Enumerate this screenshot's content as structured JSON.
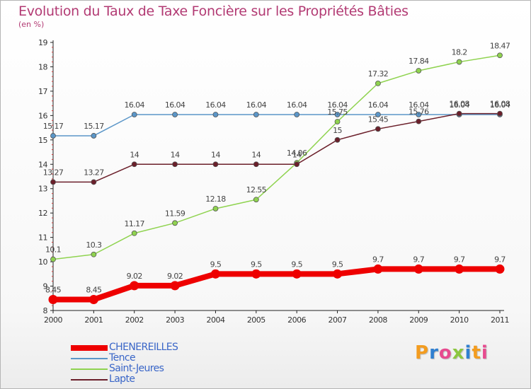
{
  "header": {
    "title": "Evolution du Taux de Taxe Foncière sur les Propriétés Bâties",
    "subtitle": "(en %)"
  },
  "colors": {
    "CHENEREILLES": "#ee0000",
    "Tence": "#5b96c8",
    "Saint-Jeures": "#8fd34f",
    "Lapte": "#6b1f2a",
    "title": "#b23a73",
    "legend_text": "#3a66c8"
  },
  "chart_data": {
    "type": "line",
    "title": "Evolution du Taux de Taxe Foncière sur les Propriétés Bâties",
    "ylabel": "(en %)",
    "x": [
      "2000",
      "2001",
      "2002",
      "2003",
      "2004",
      "2005",
      "2006",
      "2007",
      "2008",
      "2009",
      "2010",
      "2011"
    ],
    "ylim": [
      8,
      19
    ],
    "yticks": [
      8,
      9,
      10,
      11,
      12,
      13,
      14,
      15,
      16,
      17,
      18,
      19
    ],
    "grid": false,
    "legend_position": "bottom-left",
    "series": [
      {
        "name": "CHENEREILLES",
        "values": [
          8.45,
          8.45,
          9.02,
          9.02,
          9.5,
          9.5,
          9.5,
          9.5,
          9.7,
          9.7,
          9.7,
          9.7
        ],
        "labels": [
          "8.45",
          "8.45",
          "9.02",
          "9.02",
          "9.5",
          "9.5",
          "9.5",
          "9.5",
          "9.7",
          "9.7",
          "9.7",
          "9.7"
        ]
      },
      {
        "name": "Tence",
        "values": [
          15.17,
          15.17,
          16.04,
          16.04,
          16.04,
          16.04,
          16.04,
          16.04,
          16.04,
          16.04,
          16.04,
          16.04
        ],
        "labels": [
          "15.17",
          "15.17",
          "16.04",
          "16.04",
          "16.04",
          "16.04",
          "16.04",
          "16.04",
          "16.04",
          "16.04",
          "16.04",
          "16.04"
        ]
      },
      {
        "name": "Saint-Jeures",
        "values": [
          10.1,
          10.3,
          11.17,
          11.59,
          12.18,
          12.55,
          14.06,
          15.75,
          17.32,
          17.84,
          18.2,
          18.47
        ],
        "labels": [
          "10.1",
          "10.3",
          "11.17",
          "11.59",
          "12.18",
          "12.55",
          "14.06",
          "15.75",
          "17.32",
          "17.84",
          "18.2",
          "18.47"
        ]
      },
      {
        "name": "Lapte",
        "values": [
          13.27,
          13.27,
          14,
          14,
          14,
          14,
          14,
          15,
          15.45,
          15.76,
          16.08,
          16.08
        ],
        "labels": [
          "13.27",
          "13.27",
          "14",
          "14",
          "14",
          "14",
          "14",
          "15",
          "15.45",
          "15.76",
          "16.08",
          "16.08"
        ]
      }
    ]
  },
  "legend": {
    "items": [
      {
        "label": "CHENEREILLES"
      },
      {
        "label": "Tence"
      },
      {
        "label": "Saint-Jeures"
      },
      {
        "label": "Lapte"
      }
    ]
  },
  "logo": {
    "text": "Proxiti",
    "colors": [
      "#f39c1f",
      "#2f7fd0",
      "#e74b8f",
      "#8cc63f",
      "#2f7fd0",
      "#f39c1f",
      "#e74b8f"
    ]
  }
}
